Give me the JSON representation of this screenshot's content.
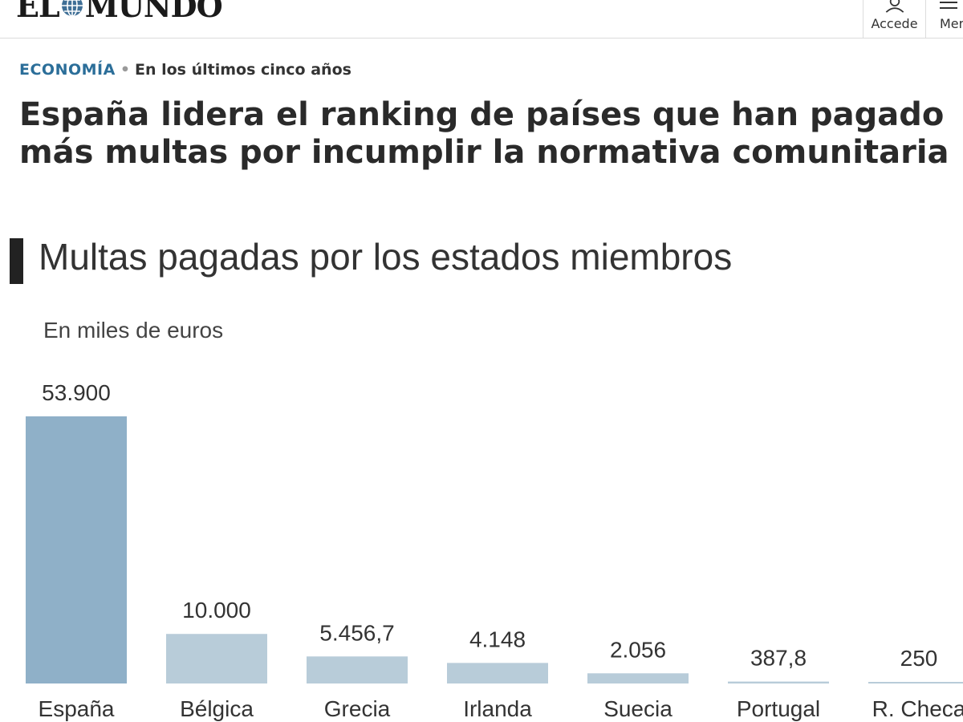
{
  "header": {
    "logo_left": "EL",
    "logo_right": "MUNDO",
    "login_label": "Accede",
    "menu_label": "Menú",
    "icons": {
      "login": "user-icon",
      "menu": "hamburger-icon",
      "logo": "globe-icon"
    }
  },
  "article": {
    "section": "ECONOMÍA",
    "subtitle": "En los últimos cinco años",
    "headline": "España lidera el ranking de países que han pagado más multas por incumplir la normativa comunitaria"
  },
  "chart_data": {
    "type": "bar",
    "title": "Multas pagadas por los estados miembros",
    "unit_label": "En miles de euros",
    "categories": [
      "España",
      "Bélgica",
      "Grecia",
      "Irlanda",
      "Suecia",
      "Portugal",
      "R. Checa"
    ],
    "values": [
      53900,
      10000,
      5456.7,
      4148,
      2056,
      387.8,
      250
    ],
    "value_labels": [
      "53.900",
      "10.000",
      "5.456,7",
      "4.148",
      "2.056",
      "387,8",
      "250"
    ],
    "colors": {
      "highlight": "#8fb0c8",
      "default": "#b8ccd9"
    },
    "ylim": [
      0,
      53900
    ],
    "grid": false
  }
}
